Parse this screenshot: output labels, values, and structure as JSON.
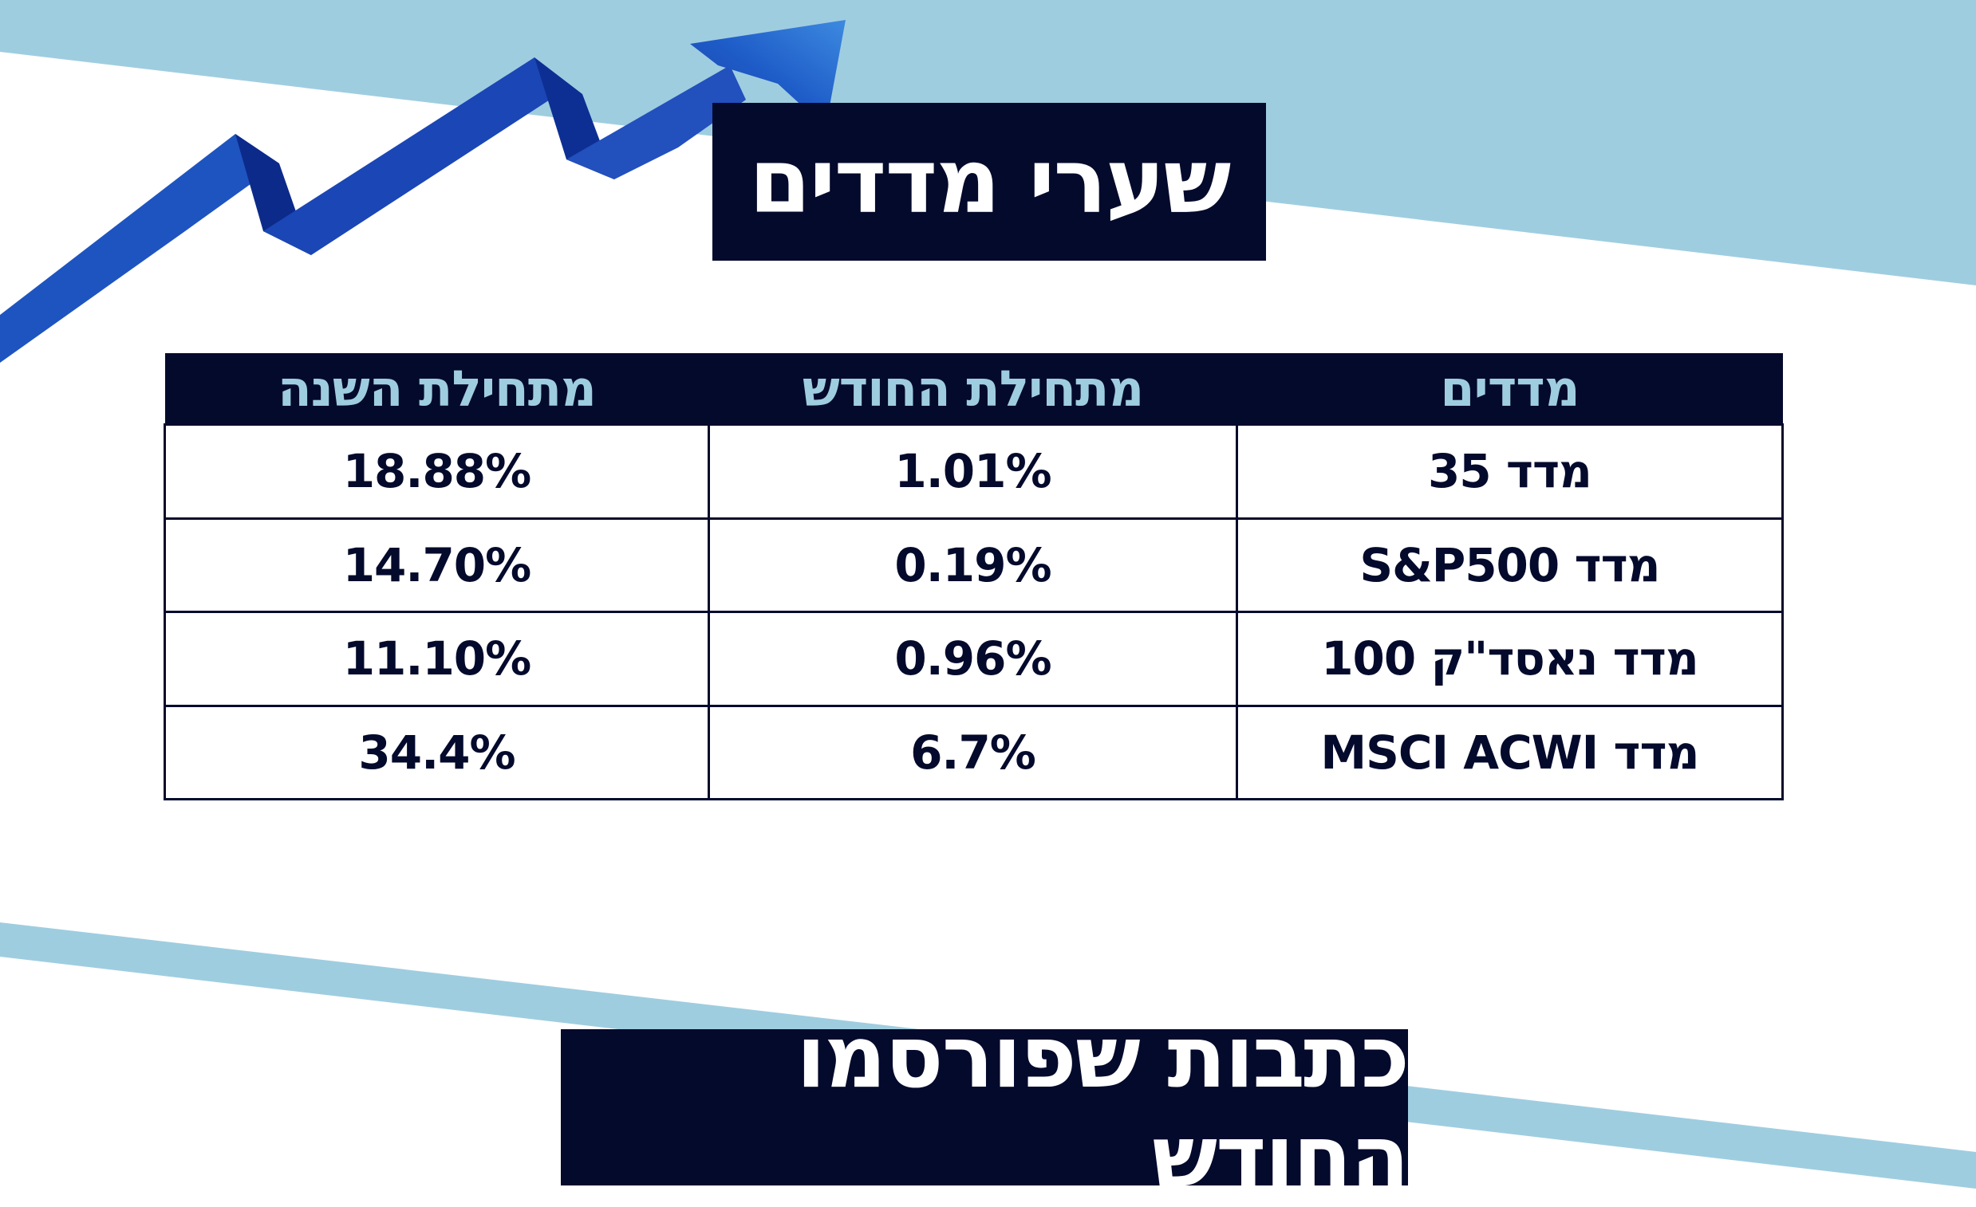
{
  "header": {
    "title": "שערי מדדים"
  },
  "table": {
    "columns": [
      "מדדים",
      "מתחילת החודש",
      "מתחילת השנה"
    ],
    "rows": [
      {
        "name": "מדד 35",
        "month": "1.01%",
        "year": "18.88%"
      },
      {
        "name": "מדד S&P500",
        "month": "0.19%",
        "year": "14.70%"
      },
      {
        "name": "מדד נאסד\"ק 100",
        "month": "0.96%",
        "year": "11.10%"
      },
      {
        "name": "מדד MSCI ACWI",
        "month": "6.7%",
        "year": "34.4%"
      }
    ]
  },
  "footer": {
    "title": "כתבות שפורסמו החודש"
  },
  "colors": {
    "navy": "#040a2c",
    "light_blue": "#9fcde0",
    "arrow_blue": "#1a4fb8"
  },
  "icons": {
    "trend": "trend-up-arrow-icon"
  }
}
